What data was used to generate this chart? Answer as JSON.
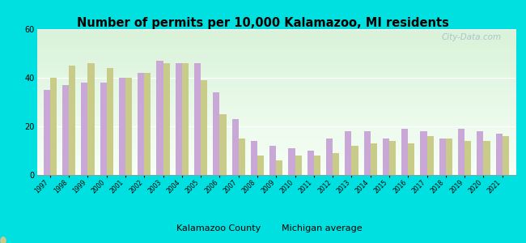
{
  "title": "Number of permits per 10,000 Kalamazoo, MI residents",
  "years": [
    1997,
    1998,
    1999,
    2000,
    2001,
    2002,
    2003,
    2004,
    2005,
    2006,
    2007,
    2008,
    2009,
    2010,
    2011,
    2012,
    2013,
    2014,
    2015,
    2016,
    2017,
    2018,
    2019,
    2020,
    2021
  ],
  "kalamazoo": [
    35,
    37,
    38,
    38,
    40,
    42,
    47,
    46,
    46,
    34,
    23,
    14,
    12,
    11,
    10,
    15,
    18,
    18,
    15,
    19,
    18,
    15,
    19,
    18,
    17
  ],
  "michigan": [
    40,
    45,
    46,
    44,
    40,
    42,
    46,
    46,
    39,
    25,
    15,
    8,
    6,
    8,
    8,
    9,
    12,
    13,
    14,
    13,
    16,
    15,
    14,
    14,
    16
  ],
  "kalamazoo_color": "#c9a8d8",
  "michigan_color": "#c8cc88",
  "background_outer": "#00e0e0",
  "ylim": [
    0,
    60
  ],
  "yticks": [
    0,
    20,
    40,
    60
  ],
  "watermark": "City-Data.com",
  "legend_kalamazoo": "Kalamazoo County",
  "legend_michigan": "Michigan average"
}
